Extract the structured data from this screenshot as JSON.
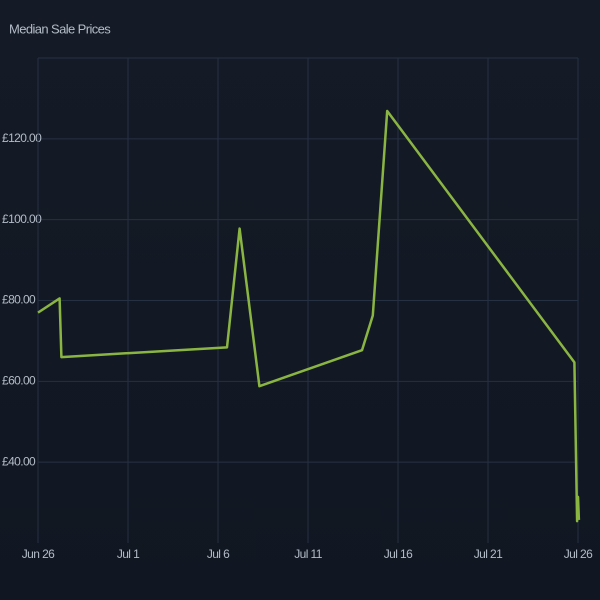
{
  "chart_data": {
    "type": "line",
    "title": "Median Sale Prices",
    "x": [
      0,
      1.2,
      1.3,
      10.5,
      11.2,
      12.3,
      18,
      18.6,
      19.4,
      29.8,
      29.95,
      30,
      30.05
    ],
    "series": [
      {
        "name": "Median Sale Prices",
        "color": "#8ab543",
        "values": [
          77,
          80.5,
          66,
          68.4,
          97.8,
          58.8,
          67.7,
          76.3,
          126.9,
          64.7,
          25.4,
          31.4,
          25.7
        ]
      }
    ],
    "xlim": [
      0,
      30
    ],
    "xticks": [
      {
        "value": 0,
        "label": "Jun 26"
      },
      {
        "value": 5,
        "label": "Jul 1"
      },
      {
        "value": 10,
        "label": "Jul 6"
      },
      {
        "value": 15,
        "label": "Jul 11"
      },
      {
        "value": 20,
        "label": "Jul 16"
      },
      {
        "value": 25,
        "label": "Jul 21"
      },
      {
        "value": 30,
        "label": "Jul 26"
      }
    ],
    "ylim": [
      20,
      140
    ],
    "yticks": [
      {
        "value": 40,
        "label": "£40.00"
      },
      {
        "value": 60,
        "label": "£60.00"
      },
      {
        "value": 80,
        "label": "£80.00"
      },
      {
        "value": 100,
        "label": "£100.00"
      },
      {
        "value": 120,
        "label": "£120.00"
      }
    ],
    "grid": true
  }
}
